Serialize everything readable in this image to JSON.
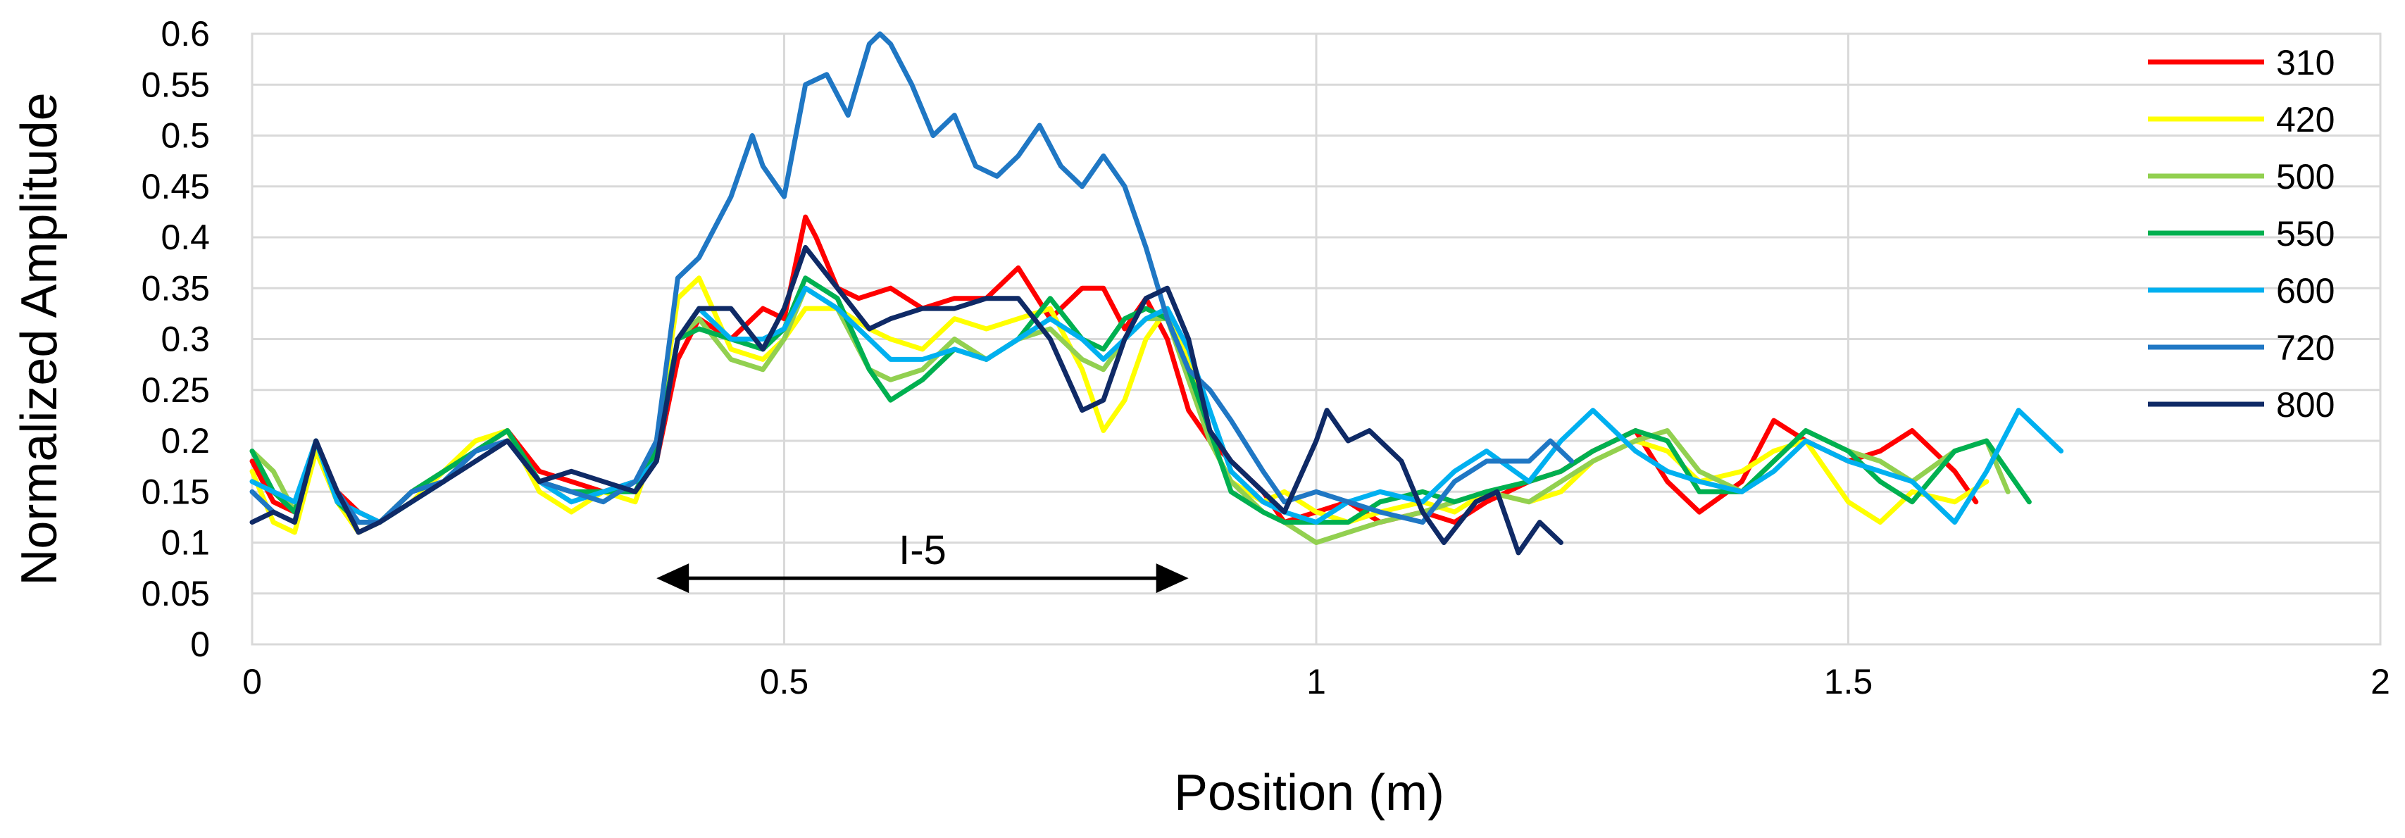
{
  "chart_data": {
    "type": "line",
    "xlabel": "Position (m)",
    "ylabel": "Normalized Amplitude",
    "xlim": [
      0,
      2
    ],
    "ylim": [
      0,
      0.6
    ],
    "x_ticks": [
      0,
      0.5,
      1,
      1.5,
      2
    ],
    "x_tick_labels": [
      "0",
      "0.5",
      "1",
      "1.5",
      "2"
    ],
    "y_ticks": [
      0,
      0.05,
      0.1,
      0.15,
      0.2,
      0.25,
      0.3,
      0.35,
      0.4,
      0.45,
      0.5,
      0.55,
      0.6
    ],
    "y_tick_labels": [
      "0",
      "0.05",
      "0.1",
      "0.15",
      "0.2",
      "0.25",
      "0.3",
      "0.35",
      "0.4",
      "0.45",
      "0.5",
      "0.55",
      "0.6"
    ],
    "grid": true,
    "legend_position": "right",
    "annotation": {
      "label": "I-5",
      "x_start": 0.38,
      "x_end": 0.88,
      "y": 0.065
    },
    "series": [
      {
        "name": "310",
        "color": "#FF0000",
        "x": [
          0,
          0.02,
          0.04,
          0.06,
          0.08,
          0.1,
          0.12,
          0.15,
          0.18,
          0.21,
          0.24,
          0.27,
          0.3,
          0.33,
          0.36,
          0.38,
          0.4,
          0.42,
          0.45,
          0.48,
          0.5,
          0.51,
          0.52,
          0.53,
          0.55,
          0.57,
          0.6,
          0.63,
          0.66,
          0.69,
          0.72,
          0.75,
          0.78,
          0.8,
          0.82,
          0.84,
          0.86,
          0.88,
          0.9,
          0.92,
          0.95,
          0.97,
          1.0,
          1.03,
          1.06,
          1.1,
          1.13,
          1.16,
          1.2,
          1.23,
          1.26,
          1.3,
          1.33,
          1.36,
          1.4,
          1.43,
          1.46,
          1.5,
          1.53,
          1.56,
          1.6,
          1.62
        ],
        "y": [
          0.18,
          0.14,
          0.13,
          0.2,
          0.15,
          0.13,
          0.12,
          0.15,
          0.16,
          0.19,
          0.21,
          0.17,
          0.16,
          0.15,
          0.16,
          0.18,
          0.28,
          0.32,
          0.3,
          0.33,
          0.32,
          0.37,
          0.42,
          0.4,
          0.35,
          0.34,
          0.35,
          0.33,
          0.34,
          0.34,
          0.37,
          0.32,
          0.35,
          0.35,
          0.31,
          0.34,
          0.3,
          0.23,
          0.2,
          0.18,
          0.15,
          0.12,
          0.13,
          0.14,
          0.12,
          0.13,
          0.12,
          0.14,
          0.16,
          0.17,
          0.19,
          0.21,
          0.16,
          0.13,
          0.16,
          0.22,
          0.2,
          0.18,
          0.19,
          0.21,
          0.17,
          0.14
        ]
      },
      {
        "name": "420",
        "color": "#FFFF00",
        "x": [
          0,
          0.02,
          0.04,
          0.06,
          0.08,
          0.1,
          0.12,
          0.15,
          0.18,
          0.21,
          0.24,
          0.27,
          0.3,
          0.33,
          0.36,
          0.38,
          0.4,
          0.42,
          0.45,
          0.48,
          0.5,
          0.52,
          0.55,
          0.58,
          0.6,
          0.63,
          0.66,
          0.69,
          0.72,
          0.75,
          0.78,
          0.8,
          0.82,
          0.84,
          0.86,
          0.88,
          0.9,
          0.92,
          0.95,
          0.97,
          1.0,
          1.03,
          1.06,
          1.1,
          1.13,
          1.16,
          1.2,
          1.23,
          1.26,
          1.3,
          1.33,
          1.36,
          1.4,
          1.43,
          1.46,
          1.5,
          1.53,
          1.56,
          1.6,
          1.63
        ],
        "y": [
          0.17,
          0.12,
          0.11,
          0.19,
          0.14,
          0.11,
          0.12,
          0.14,
          0.17,
          0.2,
          0.21,
          0.15,
          0.13,
          0.15,
          0.14,
          0.2,
          0.34,
          0.36,
          0.29,
          0.28,
          0.3,
          0.33,
          0.33,
          0.31,
          0.3,
          0.29,
          0.32,
          0.31,
          0.32,
          0.33,
          0.27,
          0.21,
          0.24,
          0.3,
          0.33,
          0.28,
          0.2,
          0.16,
          0.14,
          0.15,
          0.13,
          0.12,
          0.13,
          0.14,
          0.13,
          0.15,
          0.14,
          0.15,
          0.18,
          0.2,
          0.19,
          0.16,
          0.17,
          0.19,
          0.2,
          0.14,
          0.12,
          0.15,
          0.14,
          0.16
        ]
      },
      {
        "name": "500",
        "color": "#92D050",
        "x": [
          0,
          0.02,
          0.04,
          0.06,
          0.08,
          0.1,
          0.12,
          0.15,
          0.18,
          0.21,
          0.24,
          0.27,
          0.3,
          0.33,
          0.36,
          0.38,
          0.4,
          0.42,
          0.45,
          0.48,
          0.5,
          0.52,
          0.55,
          0.58,
          0.6,
          0.63,
          0.66,
          0.69,
          0.72,
          0.75,
          0.78,
          0.8,
          0.82,
          0.84,
          0.86,
          0.88,
          0.9,
          0.92,
          0.95,
          0.97,
          1.0,
          1.03,
          1.06,
          1.1,
          1.13,
          1.16,
          1.2,
          1.23,
          1.26,
          1.3,
          1.33,
          1.36,
          1.4,
          1.43,
          1.46,
          1.5,
          1.53,
          1.56,
          1.6,
          1.63,
          1.65
        ],
        "y": [
          0.19,
          0.17,
          0.13,
          0.2,
          0.14,
          0.12,
          0.12,
          0.15,
          0.17,
          0.19,
          0.21,
          0.16,
          0.14,
          0.15,
          0.15,
          0.19,
          0.3,
          0.32,
          0.28,
          0.27,
          0.3,
          0.35,
          0.33,
          0.27,
          0.26,
          0.27,
          0.3,
          0.28,
          0.3,
          0.31,
          0.28,
          0.27,
          0.3,
          0.32,
          0.32,
          0.26,
          0.2,
          0.16,
          0.13,
          0.12,
          0.1,
          0.11,
          0.12,
          0.13,
          0.14,
          0.15,
          0.14,
          0.16,
          0.18,
          0.2,
          0.21,
          0.17,
          0.15,
          0.18,
          0.21,
          0.19,
          0.18,
          0.16,
          0.19,
          0.2,
          0.15
        ]
      },
      {
        "name": "550",
        "color": "#00B050",
        "x": [
          0,
          0.02,
          0.04,
          0.06,
          0.08,
          0.1,
          0.12,
          0.15,
          0.18,
          0.21,
          0.24,
          0.27,
          0.3,
          0.33,
          0.36,
          0.38,
          0.4,
          0.42,
          0.45,
          0.48,
          0.5,
          0.52,
          0.55,
          0.58,
          0.6,
          0.63,
          0.66,
          0.69,
          0.72,
          0.75,
          0.78,
          0.8,
          0.82,
          0.84,
          0.86,
          0.88,
          0.9,
          0.92,
          0.95,
          0.97,
          1.0,
          1.03,
          1.06,
          1.1,
          1.13,
          1.16,
          1.2,
          1.23,
          1.26,
          1.3,
          1.33,
          1.36,
          1.4,
          1.43,
          1.46,
          1.5,
          1.53,
          1.56,
          1.6,
          1.63,
          1.67
        ],
        "y": [
          0.19,
          0.15,
          0.13,
          0.2,
          0.14,
          0.12,
          0.12,
          0.15,
          0.17,
          0.19,
          0.21,
          0.16,
          0.15,
          0.15,
          0.15,
          0.19,
          0.3,
          0.31,
          0.3,
          0.29,
          0.31,
          0.36,
          0.34,
          0.27,
          0.24,
          0.26,
          0.29,
          0.28,
          0.3,
          0.34,
          0.3,
          0.29,
          0.32,
          0.33,
          0.32,
          0.27,
          0.21,
          0.15,
          0.13,
          0.12,
          0.12,
          0.12,
          0.14,
          0.15,
          0.14,
          0.15,
          0.16,
          0.17,
          0.19,
          0.21,
          0.2,
          0.15,
          0.15,
          0.18,
          0.21,
          0.19,
          0.16,
          0.14,
          0.19,
          0.2,
          0.14
        ]
      },
      {
        "name": "600",
        "color": "#00B0F0",
        "x": [
          0,
          0.02,
          0.04,
          0.06,
          0.08,
          0.1,
          0.12,
          0.15,
          0.18,
          0.21,
          0.24,
          0.27,
          0.3,
          0.33,
          0.36,
          0.38,
          0.4,
          0.42,
          0.45,
          0.48,
          0.5,
          0.52,
          0.55,
          0.58,
          0.6,
          0.63,
          0.66,
          0.69,
          0.72,
          0.75,
          0.78,
          0.8,
          0.82,
          0.84,
          0.86,
          0.88,
          0.9,
          0.92,
          0.95,
          0.97,
          1.0,
          1.03,
          1.06,
          1.1,
          1.13,
          1.16,
          1.2,
          1.23,
          1.26,
          1.3,
          1.33,
          1.36,
          1.4,
          1.43,
          1.46,
          1.5,
          1.53,
          1.56,
          1.6,
          1.63,
          1.66,
          1.7
        ],
        "y": [
          0.16,
          0.15,
          0.14,
          0.2,
          0.14,
          0.13,
          0.12,
          0.14,
          0.16,
          0.19,
          0.2,
          0.16,
          0.14,
          0.15,
          0.16,
          0.18,
          0.3,
          0.33,
          0.3,
          0.3,
          0.31,
          0.35,
          0.33,
          0.3,
          0.28,
          0.28,
          0.29,
          0.28,
          0.3,
          0.32,
          0.3,
          0.28,
          0.3,
          0.32,
          0.33,
          0.29,
          0.23,
          0.17,
          0.14,
          0.13,
          0.12,
          0.14,
          0.15,
          0.14,
          0.17,
          0.19,
          0.16,
          0.2,
          0.23,
          0.19,
          0.17,
          0.16,
          0.15,
          0.17,
          0.2,
          0.18,
          0.17,
          0.16,
          0.12,
          0.17,
          0.23,
          0.19
        ]
      },
      {
        "name": "720",
        "color": "#1F77C4",
        "x": [
          0,
          0.02,
          0.04,
          0.06,
          0.08,
          0.1,
          0.12,
          0.15,
          0.18,
          0.21,
          0.24,
          0.27,
          0.3,
          0.33,
          0.36,
          0.38,
          0.4,
          0.42,
          0.45,
          0.47,
          0.48,
          0.5,
          0.52,
          0.54,
          0.56,
          0.58,
          0.59,
          0.6,
          0.62,
          0.64,
          0.66,
          0.68,
          0.7,
          0.72,
          0.74,
          0.76,
          0.78,
          0.8,
          0.82,
          0.84,
          0.86,
          0.88,
          0.9,
          0.92,
          0.95,
          0.97,
          1.0,
          1.03,
          1.06,
          1.1,
          1.13,
          1.16,
          1.2,
          1.22,
          1.24
        ],
        "y": [
          0.15,
          0.13,
          0.12,
          0.2,
          0.15,
          0.12,
          0.12,
          0.15,
          0.16,
          0.19,
          0.2,
          0.16,
          0.15,
          0.14,
          0.16,
          0.2,
          0.36,
          0.38,
          0.44,
          0.5,
          0.47,
          0.44,
          0.55,
          0.56,
          0.52,
          0.59,
          0.6,
          0.59,
          0.55,
          0.5,
          0.52,
          0.47,
          0.46,
          0.48,
          0.51,
          0.47,
          0.45,
          0.48,
          0.45,
          0.39,
          0.32,
          0.27,
          0.25,
          0.22,
          0.17,
          0.14,
          0.15,
          0.14,
          0.13,
          0.12,
          0.16,
          0.18,
          0.18,
          0.2,
          0.18
        ]
      },
      {
        "name": "800",
        "color": "#0F2A66",
        "x": [
          0,
          0.02,
          0.04,
          0.06,
          0.08,
          0.1,
          0.12,
          0.15,
          0.18,
          0.21,
          0.24,
          0.27,
          0.3,
          0.33,
          0.36,
          0.38,
          0.4,
          0.42,
          0.45,
          0.48,
          0.5,
          0.52,
          0.55,
          0.58,
          0.6,
          0.63,
          0.66,
          0.69,
          0.72,
          0.75,
          0.78,
          0.8,
          0.82,
          0.84,
          0.86,
          0.88,
          0.9,
          0.92,
          0.95,
          0.97,
          1.0,
          1.01,
          1.03,
          1.05,
          1.08,
          1.1,
          1.12,
          1.15,
          1.17,
          1.19,
          1.21,
          1.23
        ],
        "y": [
          0.12,
          0.13,
          0.12,
          0.2,
          0.15,
          0.11,
          0.12,
          0.14,
          0.16,
          0.18,
          0.2,
          0.16,
          0.17,
          0.16,
          0.15,
          0.18,
          0.3,
          0.33,
          0.33,
          0.29,
          0.33,
          0.39,
          0.35,
          0.31,
          0.32,
          0.33,
          0.33,
          0.34,
          0.34,
          0.3,
          0.23,
          0.24,
          0.3,
          0.34,
          0.35,
          0.3,
          0.21,
          0.18,
          0.15,
          0.13,
          0.2,
          0.23,
          0.2,
          0.21,
          0.18,
          0.13,
          0.1,
          0.14,
          0.15,
          0.09,
          0.12,
          0.1
        ]
      }
    ]
  }
}
